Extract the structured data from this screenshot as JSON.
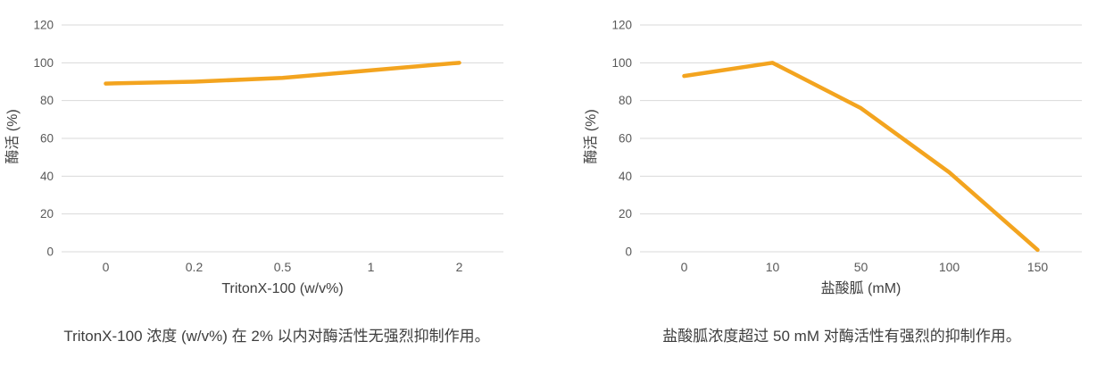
{
  "styles": {
    "line_color": "#F3A41F",
    "grid_color": "#D9D9D9",
    "tick_label_color": "#595959",
    "axis_title_color": "#404040",
    "caption_color": "#3E3E3E"
  },
  "chart_data": [
    {
      "type": "line",
      "categories": [
        "0",
        "0.2",
        "0.5",
        "1",
        "2"
      ],
      "values": [
        89,
        90,
        92,
        96,
        100
      ],
      "xlabel": "TritonX-100 (w/v%)",
      "ylabel": "酶活 (%)",
      "ylim": [
        0,
        120
      ],
      "yticks": [
        0,
        20,
        40,
        60,
        80,
        100,
        120
      ],
      "grid": "horizontal",
      "legend": "none",
      "caption": "TritonX-100 浓度 (w/v%) 在 2% 以内对酶活性无强烈抑制作用。"
    },
    {
      "type": "line",
      "categories": [
        "0",
        "10",
        "50",
        "100",
        "150"
      ],
      "values": [
        93,
        100,
        76,
        42,
        1
      ],
      "xlabel": "盐酸胍 (mM)",
      "ylabel": "酶活 (%)",
      "ylim": [
        0,
        120
      ],
      "yticks": [
        0,
        20,
        40,
        60,
        80,
        100,
        120
      ],
      "grid": "horizontal",
      "legend": "none",
      "caption": "盐酸胍浓度超过 50 mM 对酶活性有强烈的抑制作用。"
    }
  ]
}
